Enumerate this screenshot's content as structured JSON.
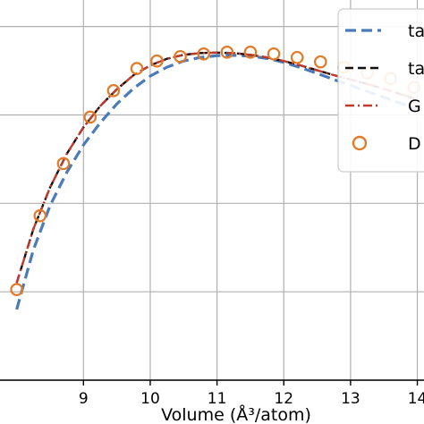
{
  "chart_data": {
    "type": "line",
    "xlabel": "Volume (Å³/atom)",
    "ylabel": "",
    "title": "",
    "x_ticks": [
      "9",
      "10",
      "11",
      "12",
      "13",
      "14"
    ],
    "grid": true,
    "legend_placement": "top-right",
    "series": [
      {
        "name": "ta",
        "style": "dashed",
        "color": "#4a7ab8",
        "x": [
          8.0,
          8.25,
          8.5,
          8.75,
          9.0,
          9.25,
          9.5,
          9.75,
          10.0,
          10.25,
          10.5,
          10.75,
          11.0,
          11.25,
          11.5,
          11.75,
          12.0,
          12.25,
          12.5,
          12.75,
          13.0,
          13.25,
          13.5,
          13.75,
          14.0
        ],
        "y": [
          1.6,
          2.95,
          3.95,
          4.7,
          5.32,
          5.82,
          6.25,
          6.6,
          6.88,
          7.08,
          7.22,
          7.3,
          7.34,
          7.35,
          7.33,
          7.28,
          7.19,
          7.07,
          6.94,
          6.8,
          6.67,
          6.53,
          6.4,
          6.26,
          6.12
        ]
      },
      {
        "name": "ta",
        "style": "dashed",
        "color": "#111111",
        "x": [
          8.0,
          8.25,
          8.5,
          8.75,
          9.0,
          9.25,
          9.5,
          9.75,
          10.0,
          10.25,
          10.5,
          10.75,
          11.0,
          11.25,
          11.5,
          11.75,
          12.0,
          12.25,
          12.5,
          12.75,
          13.0,
          13.25,
          13.5,
          13.75,
          14.0
        ],
        "y": [
          2.2,
          3.42,
          4.36,
          5.12,
          5.72,
          6.2,
          6.58,
          6.9,
          7.12,
          7.27,
          7.36,
          7.4,
          7.41,
          7.4,
          7.36,
          7.3,
          7.22,
          7.12,
          7.01,
          6.9,
          6.8,
          6.7,
          6.59,
          6.47,
          6.35
        ]
      },
      {
        "name": "G",
        "style": "dashdot",
        "color": "#c0392b",
        "x": [
          8.0,
          8.25,
          8.5,
          8.75,
          9.0,
          9.25,
          9.5,
          9.75,
          10.0,
          10.25,
          10.5,
          10.75,
          11.0,
          11.25,
          11.5,
          11.75,
          12.0,
          12.25,
          12.5,
          12.75,
          13.0,
          13.25,
          13.5,
          13.75,
          14.0
        ],
        "y": [
          2.2,
          3.42,
          4.36,
          5.12,
          5.72,
          6.2,
          6.58,
          6.9,
          7.12,
          7.27,
          7.36,
          7.4,
          7.41,
          7.4,
          7.36,
          7.3,
          7.22,
          7.12,
          7.01,
          6.9,
          6.8,
          6.7,
          6.59,
          6.47,
          6.35
        ]
      },
      {
        "name": "D",
        "style": "markers",
        "color": "#e07b2a",
        "x": [
          8.0,
          8.35,
          8.7,
          9.1,
          9.45,
          9.8,
          10.1,
          10.45,
          10.8,
          11.15,
          11.5,
          11.85,
          12.2,
          12.55,
          12.9,
          13.25,
          13.6,
          13.95
        ],
        "y": [
          2.05,
          3.72,
          4.9,
          5.95,
          6.55,
          7.05,
          7.22,
          7.32,
          7.38,
          7.42,
          7.42,
          7.38,
          7.3,
          7.2,
          7.08,
          6.95,
          6.82,
          6.62
        ]
      }
    ],
    "xlim": [
      7.75,
      14.1
    ],
    "ylim": [
      0,
      8.6
    ]
  }
}
